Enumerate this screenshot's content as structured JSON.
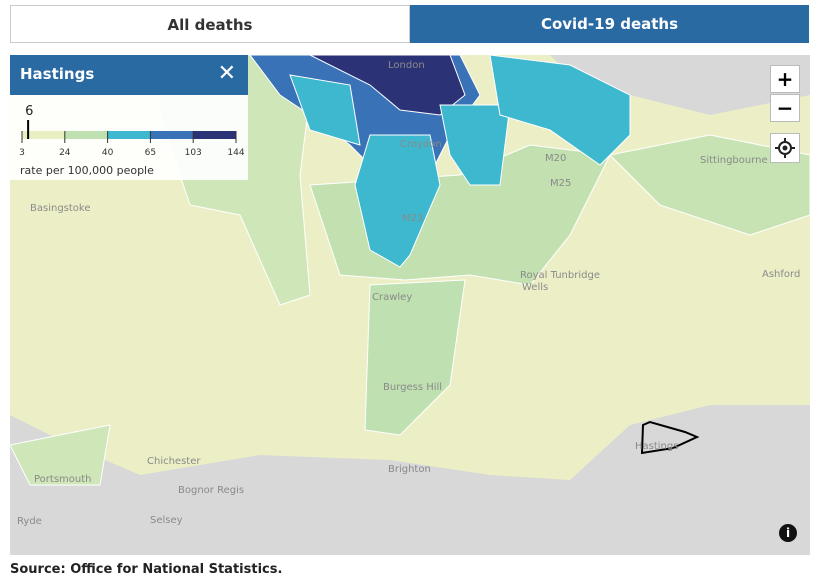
{
  "tabs": [
    {
      "label": "All deaths",
      "active": false
    },
    {
      "label": "Covid-19 deaths",
      "active": true
    }
  ],
  "panel": {
    "title": "Hastings",
    "value": 6,
    "legend": {
      "breaks": [
        3,
        24,
        40,
        65,
        103,
        144
      ],
      "colors": [
        "#e9efc0",
        "#bfe0b0",
        "#3db8cf",
        "#3a72b7",
        "#2b3275"
      ],
      "caption": "rate per 100,000 people"
    }
  },
  "map_labels": {
    "london": "London",
    "croydon": "Croydon",
    "basingstoke": "Basingstoke",
    "m25": "M25",
    "m23": "M23",
    "m20": "M20",
    "crawley": "Crawley",
    "tunbridge_1": "Royal Tunbridge",
    "tunbridge_2": "Wells",
    "sittingbourne": "Sittingbourne",
    "ashford": "Ashford",
    "burgess_hill": "Burgess Hill",
    "brighton": "Brighton",
    "chichester": "Chichester",
    "portsmouth": "Portsmouth",
    "bognor": "Bognor Regis",
    "selsey": "Selsey",
    "ryde": "Ryde",
    "hastings": "Hastings"
  },
  "controls": {
    "zoom_in": "+",
    "zoom_out": "−",
    "info": "i"
  },
  "source": "Source: Office for National Statistics."
}
